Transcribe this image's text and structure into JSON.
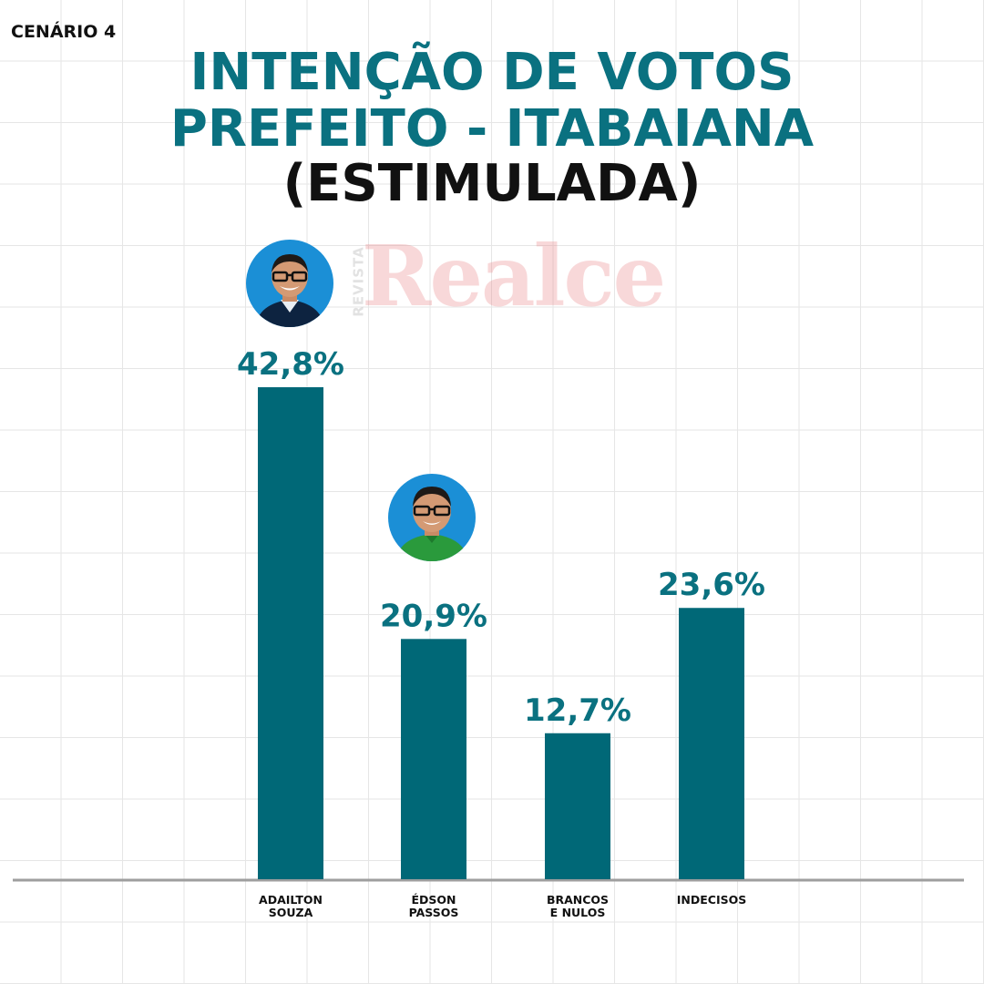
{
  "header": {
    "scenario": "CENÁRIO 4",
    "title_line1": "INTENÇÃO DE VOTOS",
    "title_line2": "PREFEITO - ITABAIANA",
    "title_line3": "(ESTIMULADA)"
  },
  "watermark": {
    "side_text": "REVISTA",
    "main_text": "Realce"
  },
  "colors": {
    "bar": "#006877",
    "accent_text": "#0a7180",
    "axis": "#9e9e9e",
    "watermark": "#e8777a",
    "avatar_bg": "#1b8fd6"
  },
  "chart_data": {
    "type": "bar",
    "title": "INTENÇÃO DE VOTOS PREFEITO - ITABAIANA (ESTIMULADA)",
    "categories": [
      [
        "ADAILTON",
        "SOUZA"
      ],
      [
        "ÉDSON",
        "PASSOS"
      ],
      [
        "BRANCOS",
        "E NULOS"
      ],
      [
        "INDECISOS"
      ]
    ],
    "values": [
      42.8,
      20.9,
      12.7,
      23.6
    ],
    "value_labels": [
      "42,8%",
      "20,9%",
      "12,7%",
      "23,6%"
    ],
    "unit": "%",
    "ylim": [
      0,
      44
    ],
    "grid": true,
    "legend": "none"
  }
}
